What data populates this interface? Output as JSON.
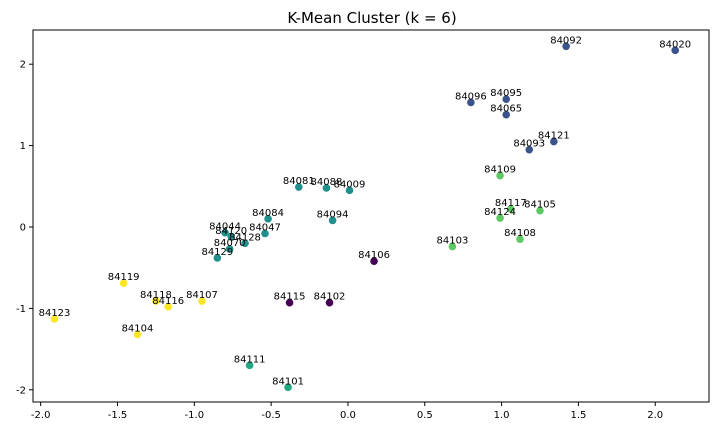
{
  "chart_data": {
    "type": "scatter",
    "title": "K-Mean Cluster (k = 6)",
    "xlabel": "",
    "ylabel": "",
    "xlim": [
      -2.05,
      2.35
    ],
    "ylim": [
      -2.15,
      2.42
    ],
    "xticks": [
      -2.0,
      -1.5,
      -1.0,
      -0.5,
      0.0,
      0.5,
      1.0,
      1.5,
      2.0
    ],
    "xtick_labels": [
      "-2.0",
      "-1.5",
      "-1.0",
      "-0.5",
      "0.0",
      "0.5",
      "1.0",
      "1.5",
      "2.0"
    ],
    "yticks": [
      -2,
      -1,
      0,
      1,
      2
    ],
    "ytick_labels": [
      "-2",
      "-1",
      "0",
      "1",
      "2"
    ],
    "grid": false,
    "cluster_colors": [
      "#440154",
      "#3b528b",
      "#21908d",
      "#22a784",
      "#5ec962",
      "#fde725"
    ],
    "points": [
      {
        "label": "84092",
        "x": 1.42,
        "y": 2.22,
        "cluster": 1
      },
      {
        "label": "84020",
        "x": 2.13,
        "y": 2.17,
        "cluster": 1
      },
      {
        "label": "84095",
        "x": 1.03,
        "y": 1.57,
        "cluster": 1
      },
      {
        "label": "84096",
        "x": 0.8,
        "y": 1.53,
        "cluster": 1
      },
      {
        "label": "84065",
        "x": 1.03,
        "y": 1.38,
        "cluster": 1
      },
      {
        "label": "84121",
        "x": 1.34,
        "y": 1.05,
        "cluster": 1
      },
      {
        "label": "84093",
        "x": 1.18,
        "y": 0.95,
        "cluster": 1
      },
      {
        "label": "84109",
        "x": 0.99,
        "y": 0.63,
        "cluster": 4
      },
      {
        "label": "84081",
        "x": -0.32,
        "y": 0.49,
        "cluster": 2
      },
      {
        "label": "84088",
        "x": -0.14,
        "y": 0.48,
        "cluster": 2
      },
      {
        "label": "84009",
        "x": 0.01,
        "y": 0.45,
        "cluster": 2
      },
      {
        "label": "84117",
        "x": 1.06,
        "y": 0.22,
        "cluster": 4
      },
      {
        "label": "84105",
        "x": 1.25,
        "y": 0.2,
        "cluster": 4
      },
      {
        "label": "84124",
        "x": 0.99,
        "y": 0.11,
        "cluster": 4
      },
      {
        "label": "84084",
        "x": -0.52,
        "y": 0.1,
        "cluster": 2
      },
      {
        "label": "84094",
        "x": -0.1,
        "y": 0.08,
        "cluster": 2
      },
      {
        "label": "84044",
        "x": -0.8,
        "y": -0.07,
        "cluster": 2
      },
      {
        "label": "84047",
        "x": -0.54,
        "y": -0.08,
        "cluster": 2
      },
      {
        "label": "84120",
        "x": -0.76,
        "y": -0.12,
        "cluster": 2
      },
      {
        "label": "84128",
        "x": -0.67,
        "y": -0.2,
        "cluster": 2
      },
      {
        "label": "84108",
        "x": 1.12,
        "y": -0.15,
        "cluster": 4
      },
      {
        "label": "84070",
        "x": -0.77,
        "y": -0.27,
        "cluster": 2
      },
      {
        "label": "84103",
        "x": 0.68,
        "y": -0.24,
        "cluster": 4
      },
      {
        "label": "84129",
        "x": -0.85,
        "y": -0.38,
        "cluster": 2
      },
      {
        "label": "84106",
        "x": 0.17,
        "y": -0.42,
        "cluster": 0
      },
      {
        "label": "84119",
        "x": -1.46,
        "y": -0.69,
        "cluster": 5
      },
      {
        "label": "84107",
        "x": -0.95,
        "y": -0.91,
        "cluster": 5
      },
      {
        "label": "84118",
        "x": -1.25,
        "y": -0.91,
        "cluster": 5
      },
      {
        "label": "84115",
        "x": -0.38,
        "y": -0.93,
        "cluster": 0
      },
      {
        "label": "84102",
        "x": -0.12,
        "y": -0.93,
        "cluster": 0
      },
      {
        "label": "84116",
        "x": -1.17,
        "y": -0.98,
        "cluster": 5
      },
      {
        "label": "84123",
        "x": -1.91,
        "y": -1.13,
        "cluster": 5
      },
      {
        "label": "84104",
        "x": -1.37,
        "y": -1.32,
        "cluster": 5
      },
      {
        "label": "84111",
        "x": -0.64,
        "y": -1.7,
        "cluster": 3
      },
      {
        "label": "84101",
        "x": -0.39,
        "y": -1.97,
        "cluster": 3
      }
    ]
  }
}
